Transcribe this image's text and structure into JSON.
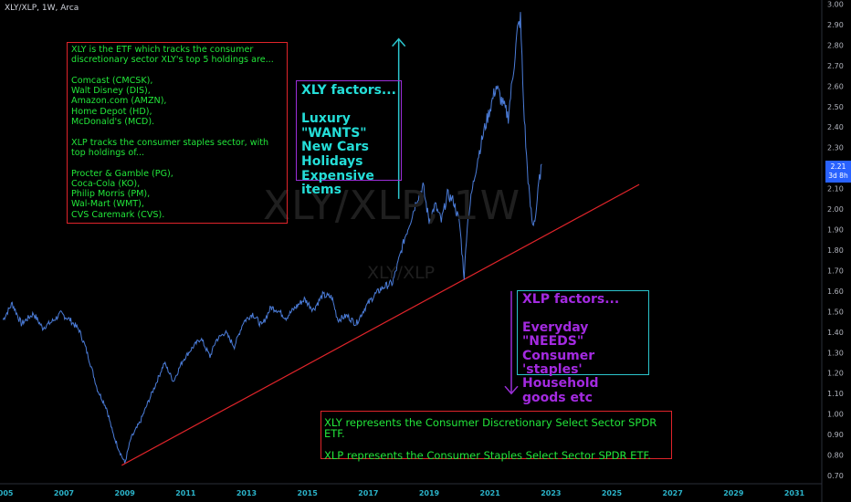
{
  "symbol_label": "XLY/XLP, 1W, Arca",
  "watermark": "XLY/XLP, 1W",
  "watermark2": "XLY/XLP",
  "last_price": "2.21",
  "last_time": "3d 8h",
  "colors": {
    "background": "#000000",
    "price_line": "#4b7cd8",
    "trend_line": "#e0242a",
    "up_arrow": "#2bc5cd",
    "down_arrow": "#9b2ed8",
    "badge": "#2962ff"
  },
  "annotations": {
    "holdings_text": "XLY is the ETF which tracks the consumer discretionary sector XLY's top 5 holdings are...\n\nComcast (CMCSK),\nWalt Disney (DIS),\nAmazon.com (AMZN),\nHome Depot (HD),\nMcDonald's (MCD).\n\nXLP tracks the consumer staples sector, with top holdings of...\n\nProcter & Gamble (PG),\nCoca-Cola (KO),\nPhilip Morris (PM),\nWal-Mart (WMT),\nCVS Caremark (CVS).",
    "xly_factors": "XLY factors...\n\nLuxury \"WANTS\"\nNew Cars\nHolidays\nExpensive items",
    "xlp_factors": "XLP factors...\n\nEveryday \"NEEDS\"\nConsumer 'staples'\nHousehold goods etc",
    "represents": "XLY represents the Consumer Discretionary Select Sector SPDR ETF.\n\nXLP represents the Consumer Staples Select Sector SPDR ETF."
  },
  "chart_data": {
    "type": "line",
    "title": "",
    "xlabel": "",
    "ylabel": "",
    "x_ticks": [
      "2005",
      "2007",
      "2009",
      "2011",
      "2013",
      "2015",
      "2017",
      "2019",
      "2021",
      "2023",
      "2025",
      "2027",
      "2029",
      "2031"
    ],
    "y_ticks": [
      "3.00",
      "2.90",
      "2.80",
      "2.70",
      "2.60",
      "2.50",
      "2.40",
      "2.30",
      "2.20",
      "2.10",
      "2.00",
      "1.90",
      "1.80",
      "1.70",
      "1.60",
      "1.50",
      "1.40",
      "1.30",
      "1.20",
      "1.10",
      "1.00",
      "0.90",
      "0.80",
      "0.70"
    ],
    "ylim": [
      0.66,
      3.02
    ],
    "xlim": [
      2004.9,
      2031.9
    ],
    "series": [
      {
        "x": [
          2005.0,
          2005.3,
          2005.6,
          2006.0,
          2006.3,
          2006.6,
          2006.9,
          2007.2,
          2007.5,
          2007.7,
          2007.9,
          2008.1,
          2008.4,
          2008.6,
          2008.8,
          2009.0,
          2009.2,
          2009.5,
          2009.8,
          2010.0,
          2010.3,
          2010.6,
          2010.9,
          2011.2,
          2011.5,
          2011.8,
          2012.0,
          2012.3,
          2012.6,
          2012.9,
          2013.2,
          2013.5,
          2013.8,
          2014.0,
          2014.3,
          2014.6,
          2014.9,
          2015.2,
          2015.5,
          2015.8,
          2016.0,
          2016.3,
          2016.6,
          2016.9,
          2017.2,
          2017.5,
          2017.8,
          2018.0,
          2018.2,
          2018.4,
          2018.6,
          2018.8,
          2019.0,
          2019.2,
          2019.4,
          2019.6,
          2019.8,
          2020.0,
          2020.15,
          2020.25,
          2020.4,
          2020.6,
          2020.8,
          2021.0,
          2021.2,
          2021.4,
          2021.6,
          2021.8,
          2021.9,
          2022.0,
          2022.1,
          2022.2,
          2022.3,
          2022.4,
          2022.5,
          2022.6,
          2022.7
        ],
        "y": [
          1.46,
          1.54,
          1.44,
          1.49,
          1.42,
          1.45,
          1.49,
          1.46,
          1.41,
          1.33,
          1.23,
          1.12,
          1.03,
          0.91,
          0.83,
          0.76,
          0.88,
          0.96,
          1.07,
          1.14,
          1.25,
          1.16,
          1.26,
          1.32,
          1.37,
          1.28,
          1.36,
          1.4,
          1.33,
          1.45,
          1.49,
          1.43,
          1.52,
          1.51,
          1.47,
          1.52,
          1.56,
          1.51,
          1.58,
          1.57,
          1.46,
          1.48,
          1.44,
          1.52,
          1.58,
          1.62,
          1.64,
          1.75,
          1.86,
          1.95,
          2.05,
          2.11,
          1.94,
          2.02,
          1.94,
          2.07,
          2.04,
          1.93,
          1.67,
          1.92,
          2.08,
          2.25,
          2.38,
          2.49,
          2.6,
          2.52,
          2.45,
          2.72,
          2.87,
          2.93,
          2.52,
          2.25,
          2.05,
          1.92,
          1.97,
          2.12,
          2.22
        ]
      }
    ],
    "trend_line": {
      "start": [
        2008.9,
        0.75
      ],
      "end": [
        2025.9,
        2.12
      ]
    },
    "arrows": [
      {
        "direction": "up",
        "x": 2018.0,
        "y_from": 2.05,
        "y_to": 2.83
      },
      {
        "direction": "down",
        "x": 2021.7,
        "y_from": 1.6,
        "y_to": 1.1
      }
    ]
  }
}
